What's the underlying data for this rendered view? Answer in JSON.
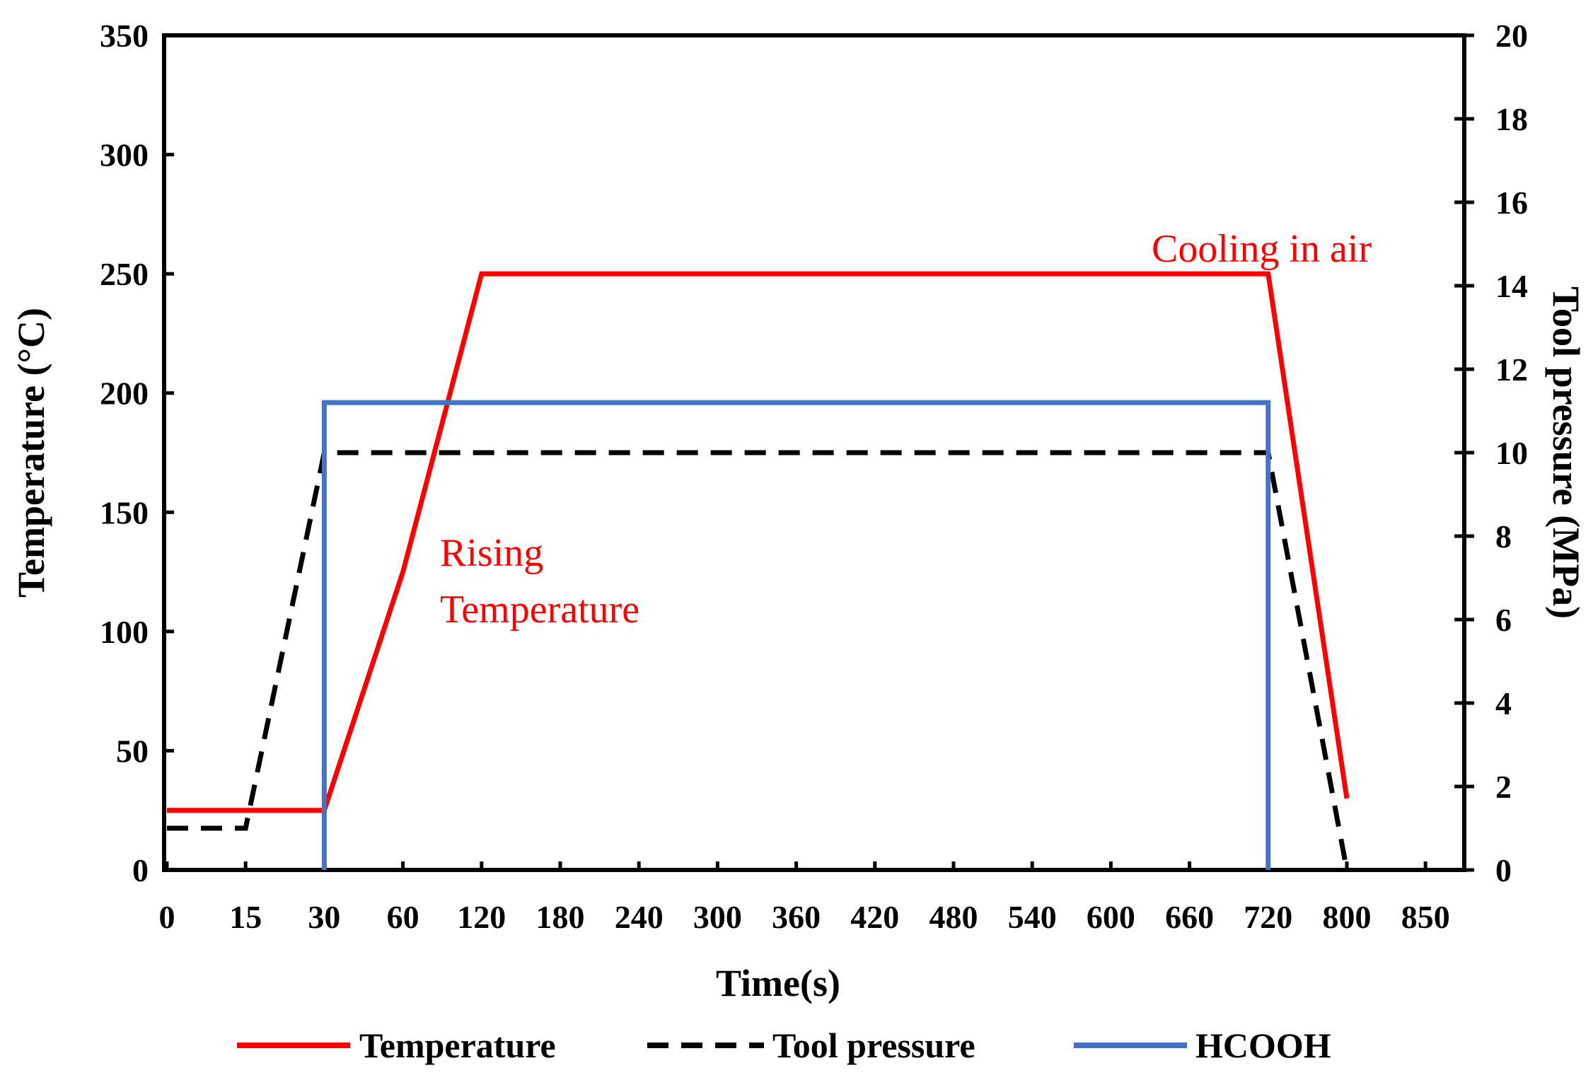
{
  "chart_data": {
    "type": "line",
    "x_categories": [
      "0",
      "15",
      "30",
      "60",
      "120",
      "180",
      "240",
      "300",
      "360",
      "420",
      "480",
      "540",
      "600",
      "660",
      "720",
      "800",
      "850"
    ],
    "xlabel": "Time(s)",
    "ylabel_left": "Temperature (°C)",
    "ylabel_right": "Tool pressure (MPa)",
    "y_left_ticks": [
      "0",
      "50",
      "100",
      "150",
      "200",
      "250",
      "300",
      "350"
    ],
    "y_right_ticks": [
      "0",
      "2",
      "4",
      "6",
      "8",
      "10",
      "12",
      "14",
      "16",
      "18",
      "20"
    ],
    "ylim_left": [
      0,
      350
    ],
    "ylim_right": [
      0,
      20
    ],
    "series": [
      {
        "name": "Temperature",
        "axis": "left",
        "color": "#ff0000",
        "style": "solid",
        "points": [
          {
            "x": 0,
            "y": 25
          },
          {
            "x": 2,
            "y": 25
          },
          {
            "x": 3,
            "y": 125
          },
          {
            "x": 4,
            "y": 250
          },
          {
            "x": 14,
            "y": 250
          },
          {
            "x": 15,
            "y": 30
          }
        ]
      },
      {
        "name": "Tool pressure",
        "axis": "right",
        "color": "#000000",
        "style": "dashed",
        "points": [
          {
            "x": 0,
            "y": 1
          },
          {
            "x": 1,
            "y": 1
          },
          {
            "x": 2,
            "y": 10
          },
          {
            "x": 14,
            "y": 10
          },
          {
            "x": 15,
            "y": 0
          }
        ]
      },
      {
        "name": "HCOOH",
        "axis": "left",
        "color": "#4472c4",
        "style": "solid",
        "points": [
          {
            "x": 2,
            "y": 0
          },
          {
            "x": 2,
            "y": 196
          },
          {
            "x": 14,
            "y": 196
          },
          {
            "x": 14,
            "y": 0
          }
        ]
      }
    ],
    "annotations": [
      {
        "text": "Cooling in air",
        "color": "#ff0000"
      },
      {
        "text": "Rising",
        "color": "#ff0000"
      },
      {
        "text": "Temperature",
        "color": "#ff0000"
      }
    ],
    "legend": {
      "position": "bottom",
      "entries": [
        "Temperature",
        "Tool pressure",
        "HCOOH"
      ]
    }
  }
}
